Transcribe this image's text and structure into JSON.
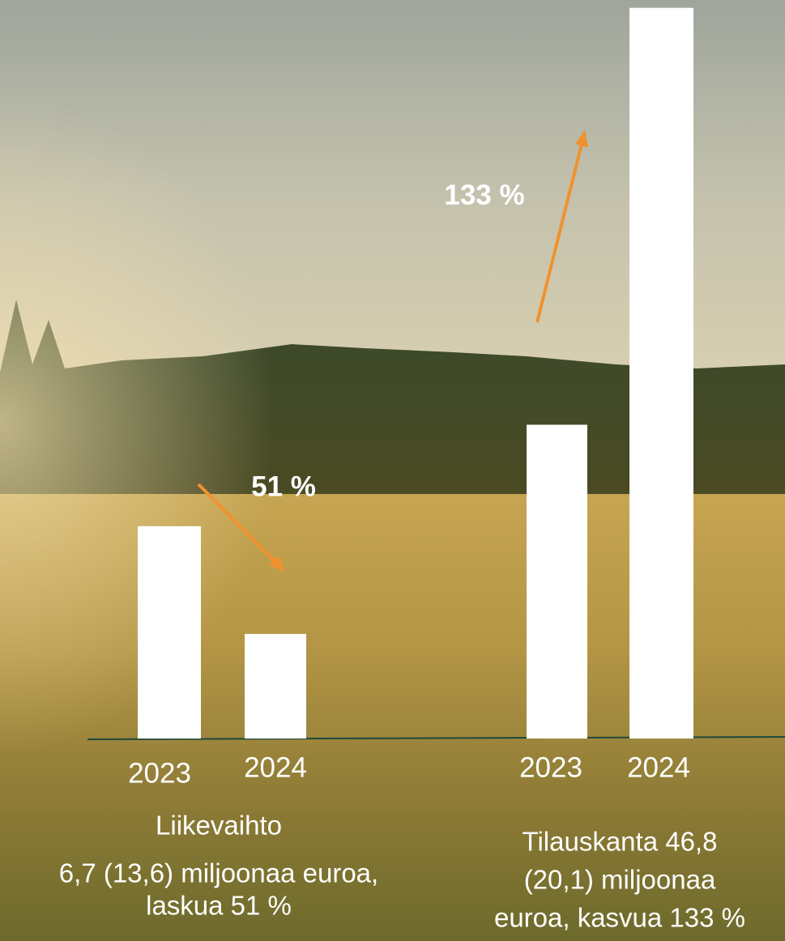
{
  "chart_data": [
    {
      "type": "bar",
      "categories": [
        "2023",
        "2024"
      ],
      "values": [
        13.6,
        6.7
      ],
      "color": "#ffffff",
      "annotation": "51 %",
      "caption": [
        "Liikevaihto",
        "6,7 (13,6) miljoonaa euroa,",
        "laskua 51 %"
      ]
    },
    {
      "type": "bar",
      "categories": [
        "2023",
        "2024"
      ],
      "values": [
        20.1,
        46.8
      ],
      "color": "#ffffff",
      "annotation": "133 %",
      "caption": [
        "Tilauskanta 46,8",
        "(20,1) miljoonaa",
        "euroa, kasvua 133 %"
      ]
    }
  ]
}
